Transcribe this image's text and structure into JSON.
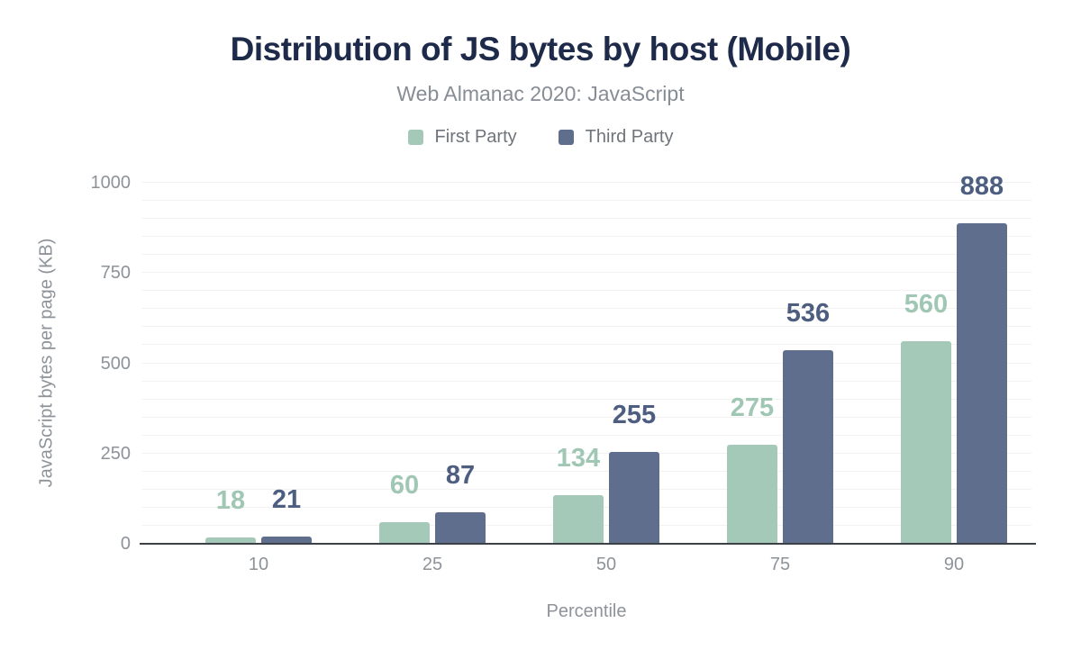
{
  "header": {
    "title": "Distribution of JS bytes by host (Mobile)",
    "subtitle": "Web Almanac 2020: JavaScript"
  },
  "legend": [
    {
      "label": "First Party",
      "color": "#a5c9b8"
    },
    {
      "label": "Third Party",
      "color": "#5f6e8c"
    }
  ],
  "chart_data": {
    "type": "bar",
    "categories": [
      "10",
      "25",
      "50",
      "75",
      "90"
    ],
    "series": [
      {
        "name": "First Party",
        "color": "#a5c9b8",
        "label_color": "#a0c7b3",
        "values": [
          18,
          60,
          134,
          275,
          560
        ]
      },
      {
        "name": "Third Party",
        "color": "#5f6e8c",
        "label_color": "#4d5e80",
        "values": [
          21,
          87,
          255,
          536,
          888
        ]
      }
    ],
    "title": "Distribution of JS bytes by host (Mobile)",
    "subtitle": "Web Almanac 2020: JavaScript",
    "xlabel": "Percentile",
    "ylabel": "JavaScript bytes per page (KB)",
    "ylim": [
      0,
      1000
    ],
    "yticks": [
      0,
      250,
      500,
      750,
      1000
    ],
    "grid_step": 50,
    "grid": true,
    "legend_position": "top",
    "colors": {
      "axis_line": "#3c4148",
      "gridline": "#f2f2f2",
      "tick_text": "#8d9399",
      "title_text": "#1e2a49",
      "subtitle_text": "#868d94"
    }
  }
}
